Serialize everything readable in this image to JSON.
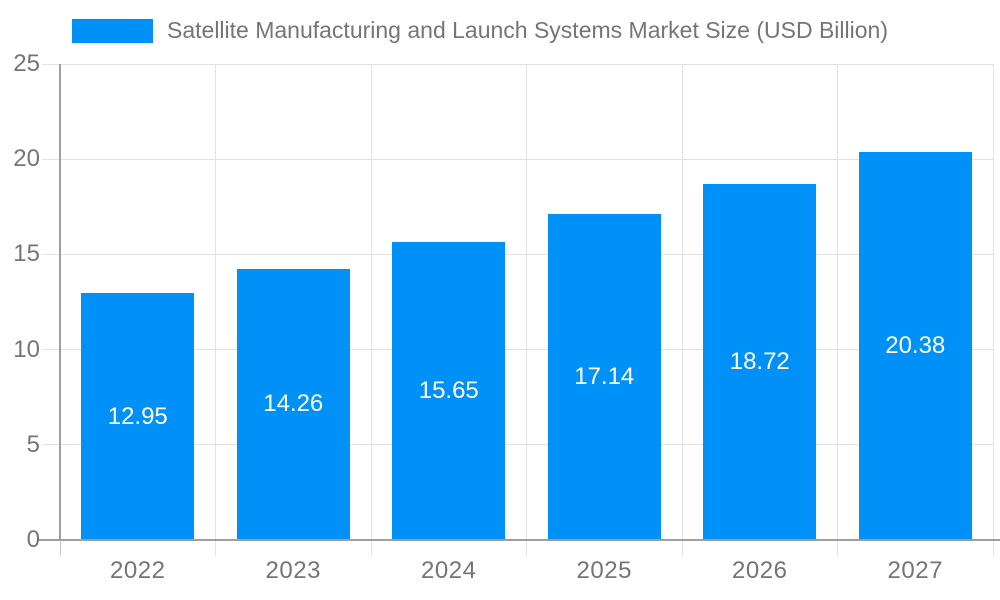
{
  "chart_data": {
    "type": "bar",
    "title": "Satellite Manufacturing and Launch Systems Market Size (USD Billion)",
    "categories": [
      "2022",
      "2023",
      "2024",
      "2025",
      "2026",
      "2027"
    ],
    "values": [
      12.95,
      14.26,
      15.65,
      17.14,
      18.72,
      20.38
    ],
    "value_labels": [
      "12.95",
      "14.26",
      "15.65",
      "17.14",
      "18.72",
      "20.38"
    ],
    "xlabel": "",
    "ylabel": "",
    "ylim": [
      0,
      25
    ],
    "yticks": [
      0,
      5,
      10,
      15,
      20,
      25
    ],
    "ytick_labels": [
      "0",
      "5",
      "10",
      "15",
      "20",
      "25"
    ],
    "grid": true,
    "legend_position": "top-left"
  },
  "colors": {
    "bar": "#0091f8",
    "grid": "#e2e2e2",
    "axis": "#9e9e9e",
    "tick": "#c8c8c8",
    "text": "#757575",
    "bar_label": "#ffffff",
    "background": "#ffffff"
  }
}
